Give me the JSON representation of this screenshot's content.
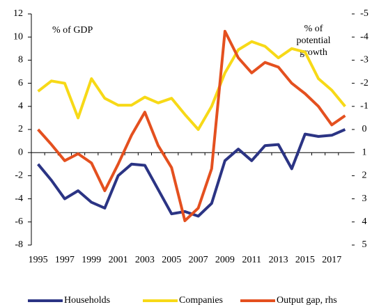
{
  "chart_data": {
    "type": "line",
    "annotations": [
      "% of GDP"
    ],
    "rhs_label_lines": [
      "% of",
      "potential",
      "growth"
    ],
    "categories": [
      "1995",
      null,
      "1997",
      null,
      "1999",
      null,
      "2001",
      null,
      "2003",
      null,
      "2005",
      null,
      "2007",
      null,
      "2009",
      null,
      "2011",
      null,
      "2013",
      null,
      "2015",
      null,
      "2017",
      null
    ],
    "ylim": [
      -8,
      12
    ],
    "yticks": [
      -8,
      -6,
      -4,
      -2,
      0,
      2,
      4,
      6,
      8,
      10,
      12
    ],
    "y2lim": [
      5,
      -5
    ],
    "y2ticks": [
      -5,
      -4,
      -3,
      -2,
      -1,
      0,
      1,
      2,
      3,
      4,
      5
    ],
    "legend": "bottom",
    "series": [
      {
        "name": "Households",
        "color": "#2b3484",
        "values": [
          -1.0,
          -2.4,
          -4.0,
          -3.3,
          -4.3,
          -4.8,
          -2.0,
          -1.0,
          -1.1,
          -3.2,
          -5.3,
          -5.1,
          -5.5,
          -4.4,
          -0.7,
          0.3,
          -0.7,
          0.6,
          0.7,
          -1.4,
          1.6,
          1.4,
          1.5,
          2.0
        ]
      },
      {
        "name": "Companies",
        "color": "#f7d917",
        "values": [
          5.3,
          6.2,
          6.0,
          3.0,
          6.4,
          4.7,
          4.1,
          4.1,
          4.8,
          4.3,
          4.7,
          3.3,
          2.0,
          4.0,
          6.9,
          8.9,
          9.6,
          9.2,
          8.2,
          9.0,
          8.7,
          6.4,
          5.4,
          4.0
        ]
      },
      {
        "name": "Output gap, rhs",
        "color": "#e4501f",
        "axis": "y2",
        "values": [
          0.0,
          0.65,
          1.35,
          1.05,
          1.45,
          2.65,
          1.5,
          0.25,
          -0.75,
          0.7,
          1.65,
          3.95,
          3.4,
          1.7,
          -4.25,
          -3.1,
          -2.45,
          -2.9,
          -2.7,
          -2.0,
          -1.55,
          -1.0,
          -0.2,
          -0.6
        ]
      }
    ]
  }
}
